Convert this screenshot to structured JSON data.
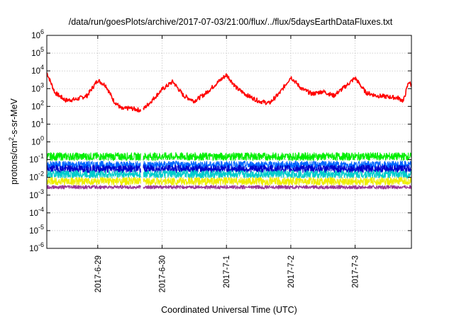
{
  "chart_data": {
    "type": "line",
    "title": "/data/run/goesPlots/archive/2017-07-03/21:00/flux/../flux/5daysEarthDataFluxes.txt",
    "xlabel": "Coordinated Universal Time (UTC)",
    "ylabel": {
      "base": "protons/cm",
      "sup": "2",
      "rest": "-s-sr-MeV"
    },
    "yscale": "log",
    "ylim": [
      1e-06,
      1000000.0
    ],
    "yticks": [
      {
        "value": 1e-06,
        "base": "10",
        "exp": "-6"
      },
      {
        "value": 1e-05,
        "base": "10",
        "exp": "-5"
      },
      {
        "value": 0.0001,
        "base": "10",
        "exp": "-4"
      },
      {
        "value": 0.001,
        "base": "10",
        "exp": "-3"
      },
      {
        "value": 0.01,
        "base": "10",
        "exp": "-2"
      },
      {
        "value": 0.1,
        "base": "10",
        "exp": "-1"
      },
      {
        "value": 1,
        "base": "10",
        "exp": "0"
      },
      {
        "value": 10,
        "base": "10",
        "exp": "1"
      },
      {
        "value": 100,
        "base": "10",
        "exp": "2"
      },
      {
        "value": 1000,
        "base": "10",
        "exp": "3"
      },
      {
        "value": 10000,
        "base": "10",
        "exp": "4"
      },
      {
        "value": 100000,
        "base": "10",
        "exp": "5"
      },
      {
        "value": 1000000,
        "base": "10",
        "exp": "6"
      }
    ],
    "xlim": [
      "2017-06-28T05:00",
      "2017-07-03T21:00"
    ],
    "xticks": [
      {
        "value": "2017-06-29T00:00",
        "label": "2017-6-29"
      },
      {
        "value": "2017-06-30T00:00",
        "label": "2017-6-30"
      },
      {
        "value": "2017-07-01T00:00",
        "label": "2017-7-1"
      },
      {
        "value": "2017-07-02T00:00",
        "label": "2017-7-2"
      },
      {
        "value": "2017-07-03T00:00",
        "label": "2017-7-3"
      }
    ],
    "grid": true,
    "data_gap": [
      "2017-06-29T16:00",
      "2017-06-29T17:00"
    ],
    "series": [
      {
        "color": "#ff0000",
        "x": [
          "2017-06-28T05:00",
          "2017-06-28T08:00",
          "2017-06-28T12:00",
          "2017-06-28T16:00",
          "2017-06-28T20:00",
          "2017-06-29T00:00",
          "2017-06-29T03:00",
          "2017-06-29T06:00",
          "2017-06-29T09:00",
          "2017-06-29T12:00",
          "2017-06-29T16:00",
          "2017-06-29T17:00",
          "2017-06-29T20:00",
          "2017-06-30T00:00",
          "2017-06-30T04:00",
          "2017-06-30T08:00",
          "2017-06-30T12:00",
          "2017-06-30T16:00",
          "2017-06-30T20:00",
          "2017-07-01T00:00",
          "2017-07-01T04:00",
          "2017-07-01T08:00",
          "2017-07-01T12:00",
          "2017-07-01T16:00",
          "2017-07-01T20:00",
          "2017-07-02T00:00",
          "2017-07-02T04:00",
          "2017-07-02T08:00",
          "2017-07-02T12:00",
          "2017-07-02T16:00",
          "2017-07-02T20:00",
          "2017-07-03T00:00",
          "2017-07-03T04:00",
          "2017-07-03T08:00",
          "2017-07-03T12:00",
          "2017-07-03T16:00",
          "2017-07-03T18:00",
          "2017-07-03T20:00",
          "2017-07-03T21:00"
        ],
        "values": [
          8000,
          600,
          220,
          250,
          400,
          3000,
          1500,
          200,
          70,
          80,
          60,
          70,
          200,
          900,
          2500,
          400,
          200,
          500,
          1800,
          6000,
          1000,
          400,
          200,
          150,
          600,
          4500,
          1000,
          500,
          700,
          400,
          1200,
          4000,
          600,
          400,
          350,
          300,
          200,
          2500,
          1500
        ]
      },
      {
        "color": "#00ee00",
        "x": [
          "2017-06-28T05:00",
          "2017-06-29T16:00",
          "2017-06-29T17:00",
          "2017-07-03T21:00"
        ],
        "values": [
          0.15,
          0.15,
          0.15,
          0.15
        ]
      },
      {
        "color": "#0066ff",
        "x": [
          "2017-06-28T05:00",
          "2017-06-29T16:00",
          "2017-06-29T17:00",
          "2017-07-03T21:00"
        ],
        "values": [
          0.05,
          0.05,
          0.05,
          0.05
        ]
      },
      {
        "color": "#0000cc",
        "x": [
          "2017-06-28T05:00",
          "2017-06-29T16:00",
          "2017-06-29T17:00",
          "2017-07-03T21:00"
        ],
        "values": [
          0.03,
          0.03,
          0.03,
          0.03
        ]
      },
      {
        "color": "#00cccc",
        "x": [
          "2017-06-28T05:00",
          "2017-06-29T16:00",
          "2017-06-29T17:00",
          "2017-07-03T21:00"
        ],
        "values": [
          0.015,
          0.015,
          0.015,
          0.015
        ]
      },
      {
        "color": "#eeee00",
        "x": [
          "2017-06-28T05:00",
          "2017-06-29T16:00",
          "2017-06-29T17:00",
          "2017-07-03T21:00"
        ],
        "values": [
          0.006,
          0.006,
          0.006,
          0.006
        ]
      },
      {
        "color": "#993399",
        "x": [
          "2017-06-28T05:00",
          "2017-06-29T16:00",
          "2017-06-29T17:00",
          "2017-07-03T21:00"
        ],
        "values": [
          0.0028,
          0.0028,
          0.0028,
          0.0028
        ]
      }
    ]
  }
}
